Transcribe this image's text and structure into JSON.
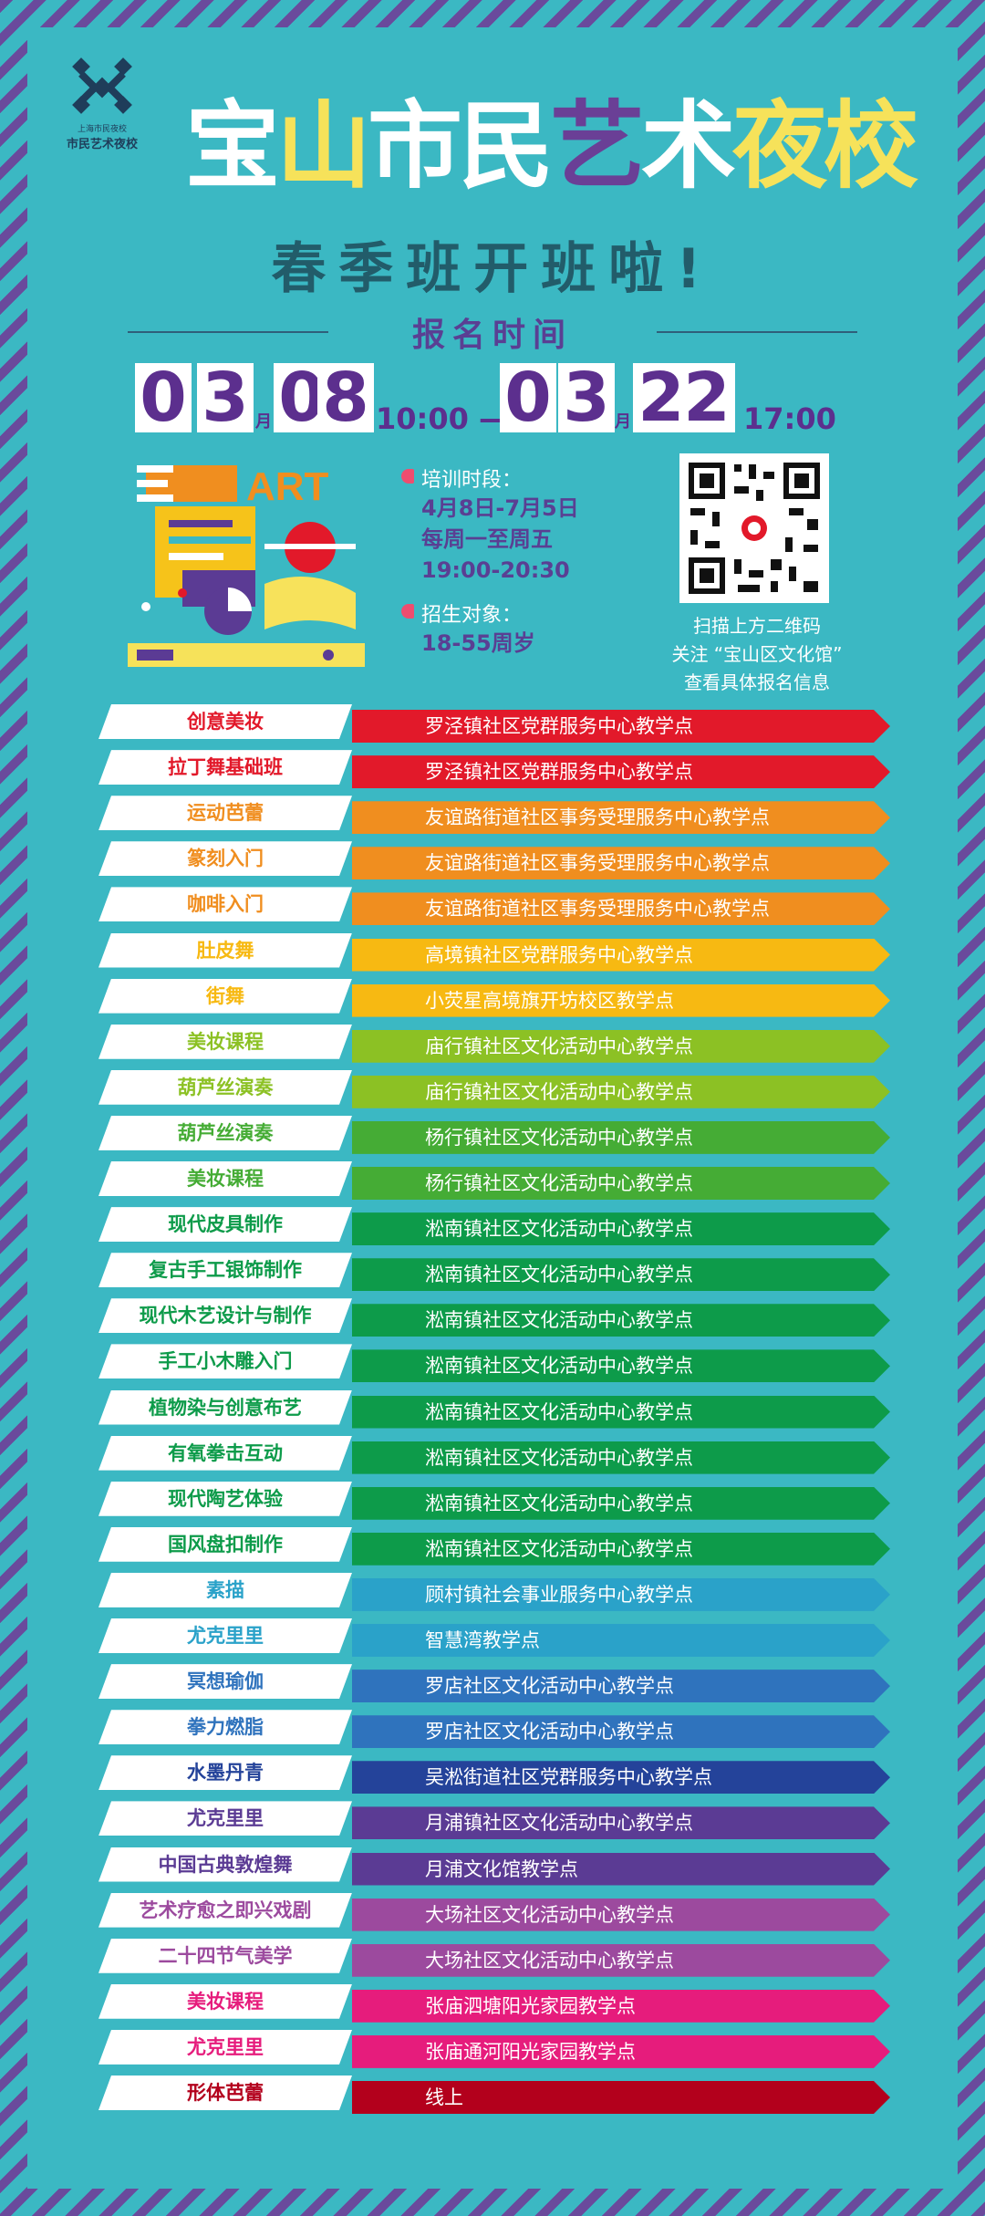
{
  "logo": {
    "subtitle": "上海市民夜校",
    "name": "市民艺术夜校"
  },
  "title": {
    "chars": [
      "宝",
      "山",
      "市",
      "民",
      "艺",
      "术",
      "夜",
      "校"
    ]
  },
  "subtitle": "春季班开班啦!",
  "registration": {
    "label": "报名时间",
    "start": {
      "d1": "0",
      "d2": "3",
      "month": "月",
      "d3": "0",
      "d4": "8",
      "time": "10:00 —"
    },
    "end": {
      "d1": "0",
      "d2": "3",
      "month": "月",
      "d3": "2",
      "d4": "2",
      "time": "17:00"
    }
  },
  "art_word": "ART",
  "info": {
    "period_label": "培训时段：",
    "period_lines": [
      "4月8日-7月5日",
      "每周一至周五",
      "19:00-20:30"
    ],
    "target_label": "招生对象：",
    "target": "18-55周岁"
  },
  "qr": {
    "caption_lines": [
      "扫描上方二维码",
      "关注 “宝山区文化馆”",
      "查看具体报名信息"
    ]
  },
  "courses": [
    {
      "name": "创意美妆",
      "location": "罗泾镇社区党群服务中心教学点",
      "color": "#e2192a"
    },
    {
      "name": "拉丁舞基础班",
      "location": "罗泾镇社区党群服务中心教学点",
      "color": "#e2192a"
    },
    {
      "name": "运动芭蕾",
      "location": "友谊路街道社区事务受理服务中心教学点",
      "color": "#f08e1f"
    },
    {
      "name": "篆刻入门",
      "location": "友谊路街道社区事务受理服务中心教学点",
      "color": "#f08e1f"
    },
    {
      "name": "咖啡入门",
      "location": "友谊路街道社区事务受理服务中心教学点",
      "color": "#f08e1f"
    },
    {
      "name": "肚皮舞",
      "location": "高境镇社区党群服务中心教学点",
      "color": "#f7b912"
    },
    {
      "name": "街舞",
      "location": "小荧星高境旗开坊校区教学点",
      "color": "#f7b912"
    },
    {
      "name": "美妆课程",
      "location": "庙行镇社区文化活动中心教学点",
      "color": "#8cc124"
    },
    {
      "name": "葫芦丝演奏",
      "location": "庙行镇社区文化活动中心教学点",
      "color": "#8cc124"
    },
    {
      "name": "葫芦丝演奏",
      "location": "杨行镇社区文化活动中心教学点",
      "color": "#45ac35"
    },
    {
      "name": "美妆课程",
      "location": "杨行镇社区文化活动中心教学点",
      "color": "#45ac35"
    },
    {
      "name": "现代皮具制作",
      "location": "淞南镇社区文化活动中心教学点",
      "color": "#0d9b4a"
    },
    {
      "name": "复古手工银饰制作",
      "location": "淞南镇社区文化活动中心教学点",
      "color": "#0d9b4a"
    },
    {
      "name": "现代木艺设计与制作",
      "location": "淞南镇社区文化活动中心教学点",
      "color": "#0d9b4a"
    },
    {
      "name": "手工小木雕入门",
      "location": "淞南镇社区文化活动中心教学点",
      "color": "#0d9b4a"
    },
    {
      "name": "植物染与创意布艺",
      "location": "淞南镇社区文化活动中心教学点",
      "color": "#0d9b4a"
    },
    {
      "name": "有氧拳击互动",
      "location": "淞南镇社区文化活动中心教学点",
      "color": "#0d9b4a"
    },
    {
      "name": "现代陶艺体验",
      "location": "淞南镇社区文化活动中心教学点",
      "color": "#0d9b4a"
    },
    {
      "name": "国风盘扣制作",
      "location": "淞南镇社区文化活动中心教学点",
      "color": "#0d9b4a"
    },
    {
      "name": "素描",
      "location": "顾村镇社会事业服务中心教学点",
      "color": "#2aa2c9"
    },
    {
      "name": "尤克里里",
      "location": "智慧湾教学点",
      "color": "#2aa2c9"
    },
    {
      "name": "冥想瑜伽",
      "location": "罗店社区文化活动中心教学点",
      "color": "#2f73bd"
    },
    {
      "name": "拳力燃脂",
      "location": "罗店社区文化活动中心教学点",
      "color": "#2f73bd"
    },
    {
      "name": "水墨丹青",
      "location": "吴淞街道社区党群服务中心教学点",
      "color": "#24439a"
    },
    {
      "name": "尤克里里",
      "location": "月浦镇社区文化活动中心教学点",
      "color": "#5b3b94"
    },
    {
      "name": "中国古典敦煌舞",
      "location": "月浦文化馆教学点",
      "color": "#5b3b94"
    },
    {
      "name": "艺术疗愈之即兴戏剧",
      "location": "大场社区文化活动中心教学点",
      "color": "#9c4a9e"
    },
    {
      "name": "二十四节气美学",
      "location": "大场社区文化活动中心教学点",
      "color": "#9c4a9e"
    },
    {
      "name": "美妆课程",
      "location": "张庙泗塘阳光家园教学点",
      "color": "#e61c7c"
    },
    {
      "name": "尤克里里",
      "location": "张庙通河阳光家园教学点",
      "color": "#e61c7c"
    },
    {
      "name": "形体芭蕾",
      "location": "线上",
      "color": "#b3001c"
    }
  ]
}
